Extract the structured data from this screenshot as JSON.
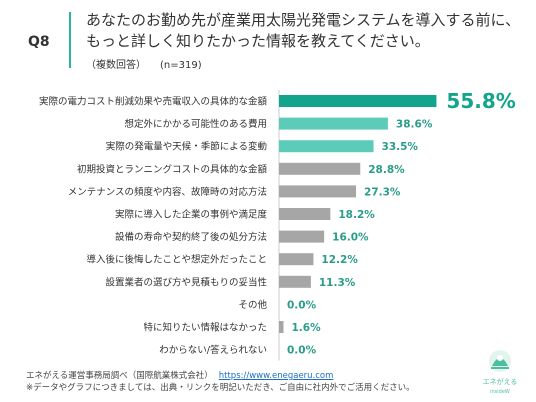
{
  "header": {
    "question_no": "Q8",
    "question_line1": "あなたのお勤め先が産業用太陽光発電システムを導入する前に、",
    "question_line2": "もっと詳しく知りたかった情報を教えてください。",
    "answer_type": "（複数回答）",
    "sample": "(n=319)"
  },
  "chart_data": {
    "type": "bar",
    "orientation": "horizontal",
    "categories": [
      "実際の電力コスト削減効果や売電収入の具体的な金額",
      "想定外にかかる可能性のある費用",
      "実際の発電量や天候・季節による変動",
      "初期投資とランニングコストの具体的な金額",
      "メンテナンスの頻度や内容、故障時の対応方法",
      "実際に導入した企業の事例や満足度",
      "設備の寿命や契約終了後の処分方法",
      "導入後に後悔したことや想定外だったこと",
      "設置業者の選び方や見積もりの妥当性",
      "その他",
      "特に知りたい情報はなかった",
      "わからない/答えられない"
    ],
    "values": [
      55.8,
      38.6,
      33.5,
      28.8,
      27.3,
      18.2,
      16.0,
      12.2,
      11.3,
      0.0,
      1.6,
      0.0
    ],
    "value_labels": [
      "55.8%",
      "38.6%",
      "33.5%",
      "28.8%",
      "27.3%",
      "18.2%",
      "16.0%",
      "12.2%",
      "11.3%",
      "0.0%",
      "1.6%",
      "0.0%"
    ],
    "colors": [
      "#12a48c",
      "#5ccbb8",
      "#5ccbb8",
      "#a6a6a6",
      "#a6a6a6",
      "#a6a6a6",
      "#a6a6a6",
      "#a6a6a6",
      "#a6a6a6",
      "#a6a6a6",
      "#a6a6a6",
      "#a6a6a6"
    ],
    "highlight_label_color": "#12a48c",
    "label_color": "#2a9c8a",
    "xlim": [
      0,
      56
    ],
    "grid": false
  },
  "footer": {
    "source": "エネがえる運営事務局調べ（国際航業株式会社）",
    "url": "https://www.enegaeru.com",
    "note": "※データやグラフにつきましては、出典・リンクを明記いただき、ご自由に社内外でご活用ください。"
  },
  "logo": {
    "text": "エネがえる",
    "sub": "insideW"
  }
}
